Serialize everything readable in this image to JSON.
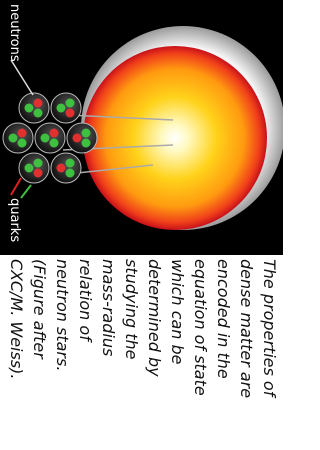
{
  "figure": {
    "labels": {
      "neutrons": "neutrons",
      "quarks": "quarks"
    }
  },
  "caption": {
    "lines": [
      "The properties of",
      "dense matter are",
      "encoded in the",
      "equation of state",
      "which can be",
      "determined by",
      "studying the",
      "mass-radius",
      "relation of",
      "neutron stars.",
      "(Figure after",
      "CXC/M. Weiss)."
    ]
  }
}
